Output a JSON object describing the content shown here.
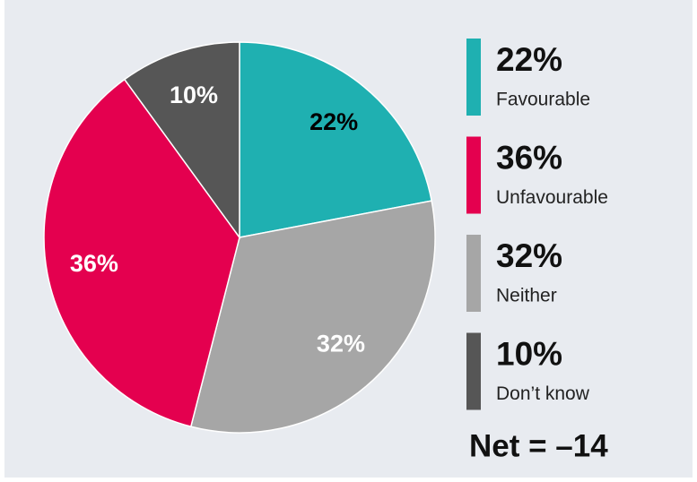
{
  "chart_data": {
    "type": "pie",
    "categories": [
      "Favourable",
      "Neither",
      "Unfavourable",
      "Don’t know"
    ],
    "values": [
      22,
      32,
      36,
      10
    ],
    "value_labels": [
      "22%",
      "32%",
      "36%",
      "10%"
    ],
    "colors": [
      "#1fb0b1",
      "#a6a6a6",
      "#e4004f",
      "#565656"
    ],
    "label_colors": [
      "#000000",
      "#ffffff",
      "#ffffff",
      "#ffffff"
    ],
    "annotation": "Net = –14"
  }
}
